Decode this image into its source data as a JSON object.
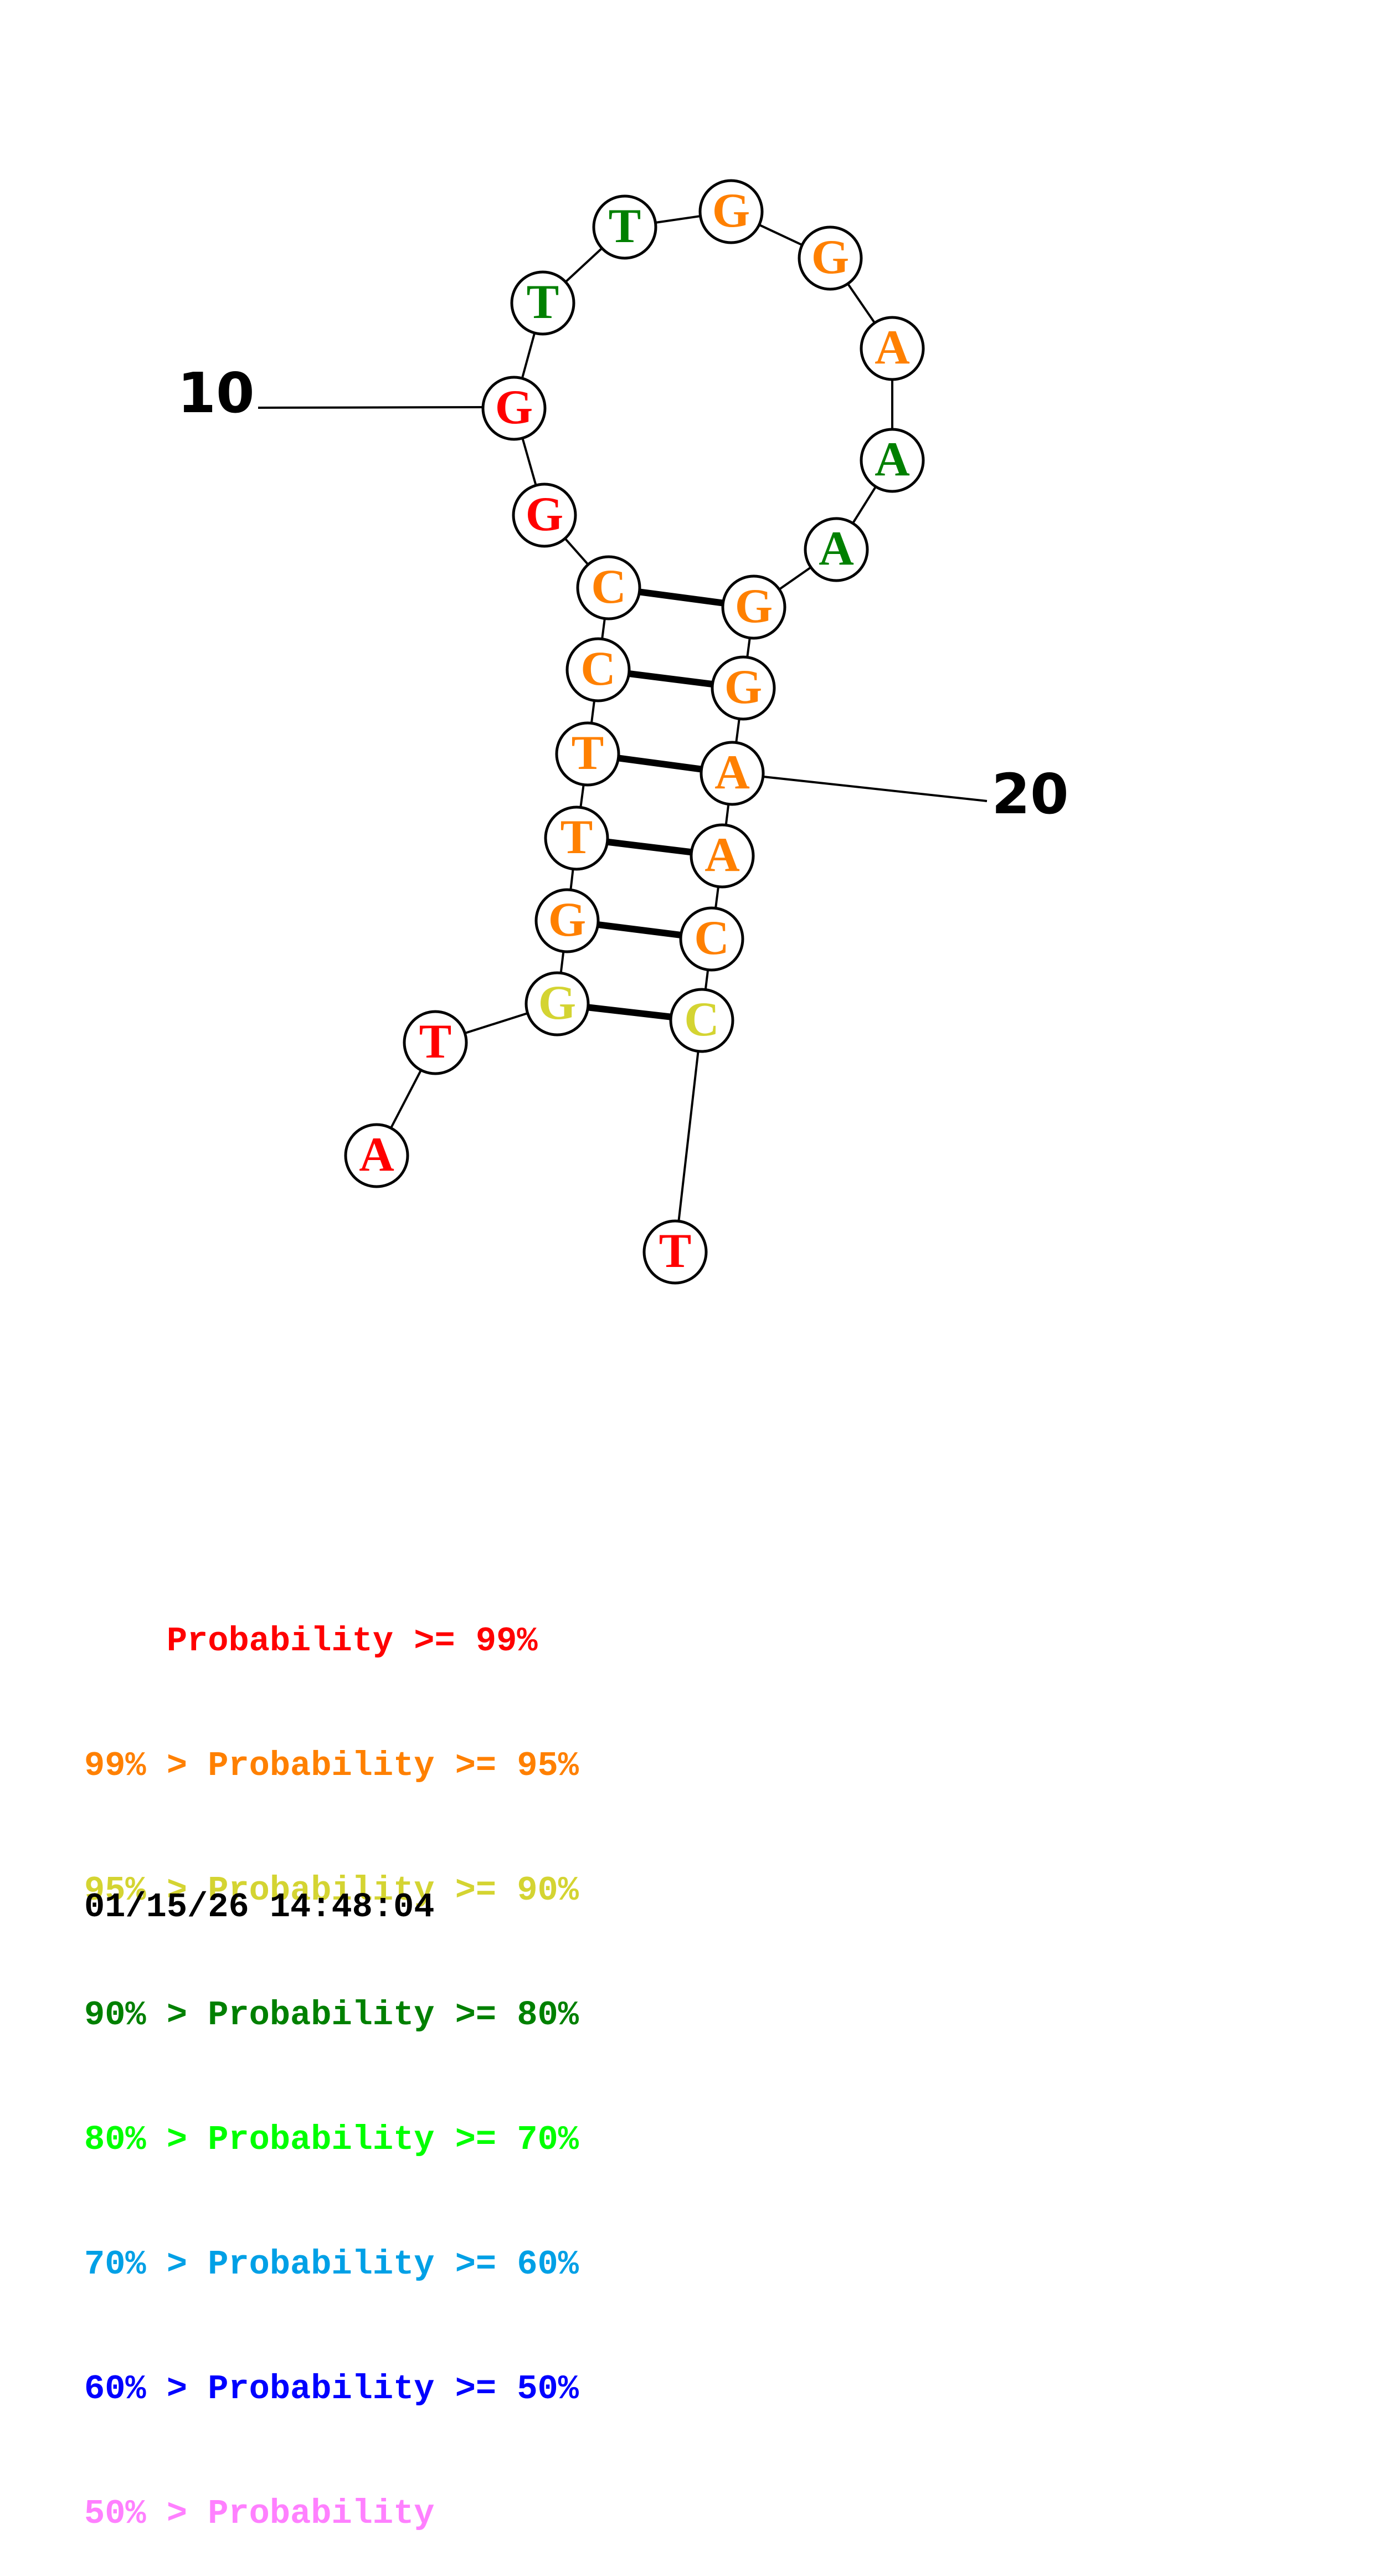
{
  "diagram": {
    "type": "rna-secondary-structure",
    "colors": {
      "p99": "#ff0000",
      "p95": "#ff8000",
      "p90": "#d4d432",
      "p80": "#008000",
      "p70": "#00ff00",
      "p60": "#00a0e6",
      "p50": "#0000ff",
      "p0": "#ff80ff"
    },
    "nucleotides": [
      {
        "index": 1,
        "letter": "A",
        "color": "p99"
      },
      {
        "index": 2,
        "letter": "T",
        "color": "p99"
      },
      {
        "index": 3,
        "letter": "G",
        "color": "p90"
      },
      {
        "index": 4,
        "letter": "G",
        "color": "p95"
      },
      {
        "index": 5,
        "letter": "T",
        "color": "p95"
      },
      {
        "index": 6,
        "letter": "T",
        "color": "p95"
      },
      {
        "index": 7,
        "letter": "C",
        "color": "p95"
      },
      {
        "index": 8,
        "letter": "C",
        "color": "p95"
      },
      {
        "index": 9,
        "letter": "G",
        "color": "p99"
      },
      {
        "index": 10,
        "letter": "G",
        "color": "p99"
      },
      {
        "index": 11,
        "letter": "T",
        "color": "p80"
      },
      {
        "index": 12,
        "letter": "T",
        "color": "p80"
      },
      {
        "index": 13,
        "letter": "G",
        "color": "p95"
      },
      {
        "index": 14,
        "letter": "G",
        "color": "p95"
      },
      {
        "index": 15,
        "letter": "A",
        "color": "p95"
      },
      {
        "index": 16,
        "letter": "A",
        "color": "p80"
      },
      {
        "index": 17,
        "letter": "A",
        "color": "p80"
      },
      {
        "index": 18,
        "letter": "G",
        "color": "p95"
      },
      {
        "index": 19,
        "letter": "G",
        "color": "p95"
      },
      {
        "index": 20,
        "letter": "A",
        "color": "p95"
      },
      {
        "index": 21,
        "letter": "A",
        "color": "p95"
      },
      {
        "index": 22,
        "letter": "C",
        "color": "p95"
      },
      {
        "index": 23,
        "letter": "C",
        "color": "p90"
      },
      {
        "index": 24,
        "letter": "T",
        "color": "p99"
      }
    ],
    "pairs": [
      [
        3,
        23
      ],
      [
        4,
        22
      ],
      [
        5,
        21
      ],
      [
        6,
        20
      ],
      [
        7,
        19
      ],
      [
        8,
        18
      ]
    ],
    "index_labels": [
      {
        "index": 10,
        "text": "10"
      },
      {
        "index": 20,
        "text": "20"
      }
    ]
  },
  "legend": [
    {
      "prefix": "    ",
      "text": "    Probability >= 99%",
      "color": "#ff0000"
    },
    {
      "text": "99% > Probability >= 95%",
      "color": "#ff8000"
    },
    {
      "text": "95% > Probability >= 90%",
      "color": "#d4d432"
    },
    {
      "text": "90% > Probability >= 80%",
      "color": "#008000"
    },
    {
      "text": "80% > Probability >= 70%",
      "color": "#00ff00"
    },
    {
      "text": "70% > Probability >= 60%",
      "color": "#00a0e6"
    },
    {
      "text": "60% > Probability >= 50%",
      "color": "#0000ff"
    },
    {
      "text": "50% > Probability",
      "color": "#ff80ff"
    }
  ],
  "timestamp": "01/15/26 14:48:04"
}
